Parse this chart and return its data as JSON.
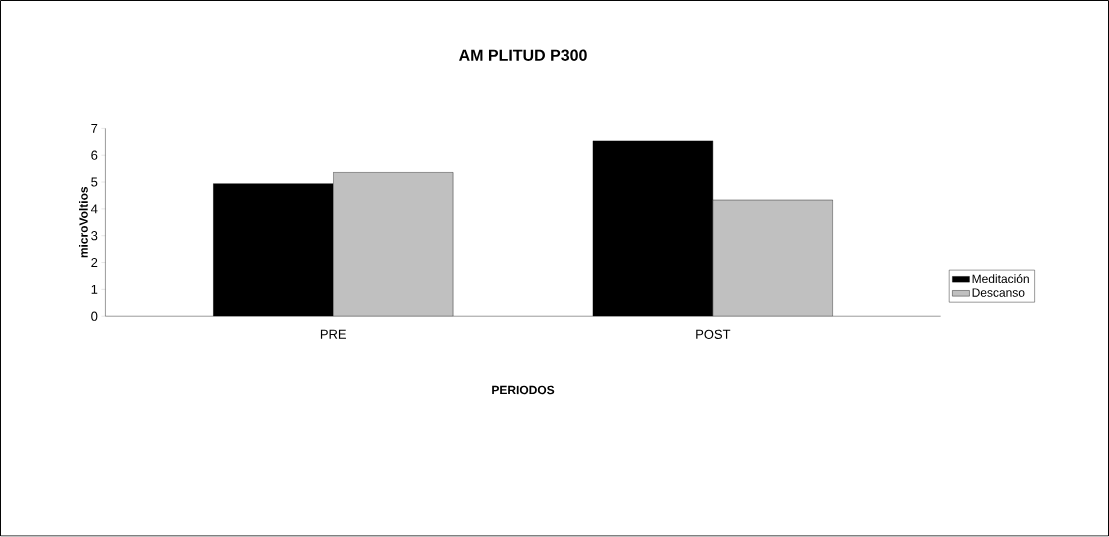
{
  "chart_data": {
    "type": "bar",
    "title": "AM PLITUD P300",
    "xlabel": "PERIODOS",
    "ylabel": "microVoltios",
    "categories": [
      "PRE",
      "POST"
    ],
    "series": [
      {
        "name": "Meditación",
        "color": "#000000",
        "values": [
          4.94,
          6.54
        ]
      },
      {
        "name": "Descanso",
        "color": "#c0c0c0",
        "values": [
          5.36,
          4.33
        ]
      }
    ],
    "ylim": [
      0,
      7
    ],
    "yticks": [
      0,
      1,
      2,
      3,
      4,
      5,
      6,
      7
    ],
    "legend": "right"
  }
}
